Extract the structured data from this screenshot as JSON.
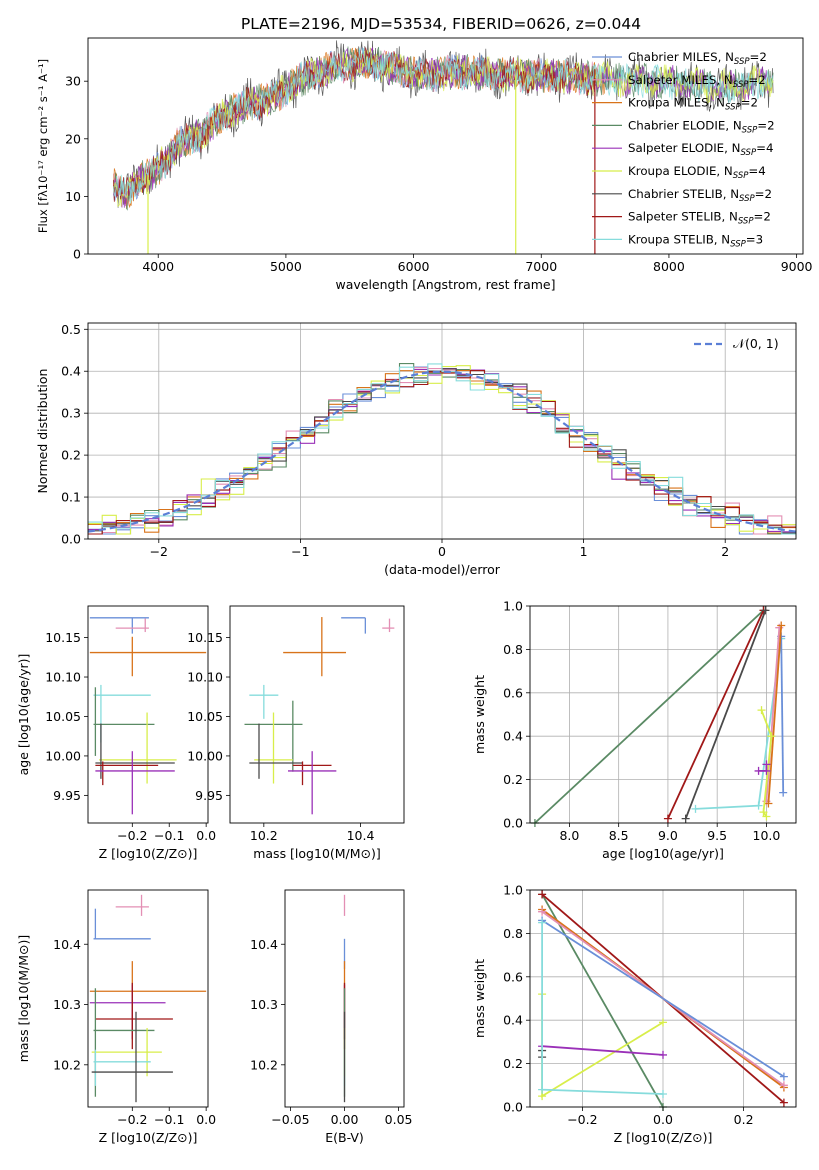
{
  "title": "PLATE=2196, MJD=53534, FIBERID=0626, z=0.044",
  "models": [
    {
      "label": "Chabrier MILES, N",
      "n": "=2",
      "color": "#6a8fd8"
    },
    {
      "label": "Salpeter MILES, N",
      "n": "=2",
      "color": "#e38fb4"
    },
    {
      "label": "Kroupa MILES, N",
      "n": "=2",
      "color": "#d8731a"
    },
    {
      "label": "Chabrier ELODIE, N",
      "n": "=2",
      "color": "#5a8a64"
    },
    {
      "label": "Salpeter ELODIE, N",
      "n": "=4",
      "color": "#9a30b8"
    },
    {
      "label": "Kroupa ELODIE, N",
      "n": "=4",
      "color": "#d8ee4a"
    },
    {
      "label": "Chabrier STELIB, N",
      "n": "=2",
      "color": "#4a4a4a"
    },
    {
      "label": "Salpeter STELIB, N",
      "n": "=2",
      "color": "#a01818"
    },
    {
      "label": "Kroupa STELIB, N",
      "n": "=3",
      "color": "#86dcdc"
    }
  ],
  "legend_sub": "SSP",
  "chart_data": [
    {
      "type": "line",
      "xlabel": "wavelength [Angstrom, rest frame]",
      "ylabel": "Flux [fλ10⁻¹⁷ erg cm⁻² s⁻¹ A⁻¹]",
      "xlim": [
        3450,
        9050
      ],
      "ylim": [
        0,
        37.5
      ],
      "xticks": [
        4000,
        5000,
        6000,
        7000,
        8000,
        9000
      ],
      "yticks": [
        0,
        10,
        20,
        30
      ],
      "continuum": [
        [
          3650,
          12
        ],
        [
          3750,
          10
        ],
        [
          3850,
          13
        ],
        [
          3950,
          14
        ],
        [
          4050,
          16
        ],
        [
          4150,
          19
        ],
        [
          4250,
          20
        ],
        [
          4350,
          21
        ],
        [
          4500,
          24
        ],
        [
          4700,
          26
        ],
        [
          4900,
          27
        ],
        [
          5100,
          30
        ],
        [
          5300,
          32
        ],
        [
          5500,
          33
        ],
        [
          5700,
          33
        ],
        [
          5900,
          32
        ],
        [
          6100,
          31
        ],
        [
          6300,
          31.5
        ],
        [
          6500,
          31.5
        ],
        [
          6700,
          31
        ],
        [
          6900,
          31
        ],
        [
          7100,
          31
        ],
        [
          7300,
          30.5
        ],
        [
          7500,
          30.5
        ],
        [
          7800,
          30
        ],
        [
          8000,
          30
        ],
        [
          8200,
          29.5
        ],
        [
          8500,
          29
        ],
        [
          8800,
          30
        ]
      ],
      "drops": [
        {
          "x": 3920,
          "model": 5
        },
        {
          "x": 6800,
          "model": 5
        },
        {
          "x": 7420,
          "model": 7
        }
      ],
      "legend_position": "upper right",
      "grid": false
    },
    {
      "type": "histogram",
      "xlabel": "(data-model)/error",
      "ylabel": "Normed distribution",
      "xlim": [
        -2.5,
        2.5
      ],
      "ylim": [
        0,
        0.515
      ],
      "xticks": [
        -2,
        -1,
        0,
        1,
        2
      ],
      "yticks": [
        0.0,
        0.1,
        0.2,
        0.3,
        0.4,
        0.5
      ],
      "bin_width": 0.1,
      "reference": {
        "label": "𝒩(0, 1)",
        "color": "#5b7fd6"
      },
      "grid": true
    },
    {
      "type": "scatter",
      "subtype": "errorbar",
      "xlabel": "Z [log10(Z/Z⊙)]",
      "ylabel": "age [log10(age/yr)]",
      "xlim": [
        -0.32,
        0.005
      ],
      "ylim": [
        9.915,
        10.19
      ],
      "xticks": [
        -0.2,
        -0.1,
        0.0
      ],
      "yticks": [
        9.95,
        10.0,
        10.05,
        10.1,
        10.15
      ],
      "points": [
        {
          "model": 0,
          "x": -0.2,
          "xerr": [
            0.115,
            0.045
          ],
          "y": 10.175,
          "yerr": [
            0.02,
            0.0
          ]
        },
        {
          "model": 1,
          "x": -0.165,
          "xerr": [
            0.08,
            0.01
          ],
          "y": 10.162,
          "yerr": [
            0.005,
            0.012
          ]
        },
        {
          "model": 2,
          "x": -0.2,
          "xerr": [
            0.115,
            0.2
          ],
          "y": 10.131,
          "yerr": [
            0.03,
            0.02
          ]
        },
        {
          "model": 8,
          "x": -0.285,
          "xerr": [
            0.02,
            0.135
          ],
          "y": 10.077,
          "yerr": [
            0.06,
            0.013
          ]
        },
        {
          "model": 3,
          "x": -0.3,
          "xerr": [
            0.005,
            0.16
          ],
          "y": 10.04,
          "yerr": [
            0.04,
            0.047
          ]
        },
        {
          "model": 5,
          "x": -0.16,
          "xerr": [
            0.13,
            0.08
          ],
          "y": 9.995,
          "yerr": [
            0.03,
            0.06
          ]
        },
        {
          "model": 6,
          "x": -0.285,
          "xerr": [
            0.015,
            0.2
          ],
          "y": 9.991,
          "yerr": [
            0.02,
            0.05
          ]
        },
        {
          "model": 7,
          "x": -0.28,
          "xerr": [
            0.02,
            0.15
          ],
          "y": 9.988,
          "yerr": [
            0.025,
            0.005
          ]
        },
        {
          "model": 4,
          "x": -0.2,
          "xerr": [
            0.1,
            0.115
          ],
          "y": 9.981,
          "yerr": [
            0.055,
            0.025
          ]
        }
      ]
    },
    {
      "type": "scatter",
      "subtype": "errorbar",
      "xlabel": "mass [log10(M/M⊙)]",
      "ylabel": "",
      "xlim": [
        10.13,
        10.49
      ],
      "ylim": [
        9.915,
        10.19
      ],
      "xticks": [
        10.2,
        10.4
      ],
      "yticks": [
        9.95,
        10.0,
        10.05,
        10.1,
        10.15
      ],
      "points": [
        {
          "model": 0,
          "x": 10.41,
          "xerr": [
            0.05,
            0.0
          ],
          "y": 10.175,
          "yerr": [
            0.02,
            0.0
          ]
        },
        {
          "model": 1,
          "x": 10.46,
          "xerr": [
            0.015,
            0.01
          ],
          "y": 10.162,
          "yerr": [
            0.005,
            0.012
          ]
        },
        {
          "model": 2,
          "x": 10.32,
          "xerr": [
            0.08,
            0.05
          ],
          "y": 10.131,
          "yerr": [
            0.03,
            0.045
          ]
        },
        {
          "model": 8,
          "x": 10.2,
          "xerr": [
            0.03,
            0.03
          ],
          "y": 10.077,
          "yerr": [
            0.03,
            0.013
          ]
        },
        {
          "model": 3,
          "x": 10.26,
          "xerr": [
            0.1,
            0.02
          ],
          "y": 10.04,
          "yerr": [
            0.06,
            0.03
          ]
        },
        {
          "model": 5,
          "x": 10.22,
          "xerr": [
            0.04,
            0.04
          ],
          "y": 9.995,
          "yerr": [
            0.03,
            0.06
          ]
        },
        {
          "model": 6,
          "x": 10.19,
          "xerr": [
            0.02,
            0.09
          ],
          "y": 9.991,
          "yerr": [
            0.02,
            0.05
          ]
        },
        {
          "model": 7,
          "x": 10.28,
          "xerr": [
            0.02,
            0.06
          ],
          "y": 9.988,
          "yerr": [
            0.025,
            0.005
          ]
        },
        {
          "model": 4,
          "x": 10.3,
          "xerr": [
            0.05,
            0.05
          ],
          "y": 9.981,
          "yerr": [
            0.055,
            0.025
          ]
        }
      ]
    },
    {
      "type": "line",
      "xlabel": "age [log10(age/yr)]",
      "ylabel": "mass weight",
      "xlim": [
        7.6,
        10.3
      ],
      "ylim": [
        0,
        1.0
      ],
      "xticks": [
        8.0,
        8.5,
        9.0,
        9.5,
        10.0
      ],
      "yticks": [
        0.0,
        0.2,
        0.4,
        0.6,
        0.8,
        1.0
      ],
      "grid": true,
      "series": [
        {
          "model": 3,
          "points": [
            [
              7.65,
              0.0
            ],
            [
              9.97,
              0.98
            ]
          ]
        },
        {
          "model": 7,
          "points": [
            [
              9.0,
              0.02
            ],
            [
              9.97,
              0.98
            ]
          ]
        },
        {
          "model": 6,
          "points": [
            [
              9.18,
              0.02
            ],
            [
              9.99,
              0.98
            ]
          ]
        },
        {
          "model": 8,
          "points": [
            [
              9.28,
              0.065
            ],
            [
              9.92,
              0.08
            ],
            [
              10.15,
              0.85
            ]
          ]
        },
        {
          "model": 0,
          "points": [
            [
              10.15,
              0.86
            ],
            [
              10.17,
              0.14
            ]
          ]
        },
        {
          "model": 1,
          "points": [
            [
              10.13,
              0.9
            ],
            [
              10.0,
              0.1
            ]
          ]
        },
        {
          "model": 2,
          "points": [
            [
              10.15,
              0.91
            ],
            [
              10.02,
              0.09
            ]
          ]
        },
        {
          "model": 5,
          "points": [
            [
              9.95,
              0.52
            ],
            [
              10.05,
              0.4
            ],
            [
              9.97,
              0.05
            ],
            [
              10.0,
              0.03
            ]
          ]
        },
        {
          "model": 4,
          "points": [
            [
              9.92,
              0.24
            ],
            [
              10.0,
              0.24
            ],
            [
              10.0,
              0.27
            ]
          ]
        }
      ]
    },
    {
      "type": "scatter",
      "subtype": "errorbar",
      "xlabel": "Z [log10(Z/Z⊙)]",
      "ylabel": "mass [log10(M/M⊙)]",
      "xlim": [
        -0.32,
        0.005
      ],
      "ylim": [
        10.13,
        10.49
      ],
      "xticks": [
        -0.2,
        -0.1,
        0.0
      ],
      "yticks": [
        10.2,
        10.3,
        10.4
      ],
      "points": [
        {
          "model": 1,
          "x": -0.175,
          "xerr": [
            0.07,
            0.02
          ],
          "y": 10.462,
          "yerr": [
            0.015,
            0.02
          ]
        },
        {
          "model": 0,
          "x": -0.3,
          "xerr": [
            0.005,
            0.15
          ],
          "y": 10.409,
          "yerr": [
            0.0,
            0.05
          ]
        },
        {
          "model": 2,
          "x": -0.2,
          "xerr": [
            0.115,
            0.2
          ],
          "y": 10.322,
          "yerr": [
            0.08,
            0.05
          ]
        },
        {
          "model": 4,
          "x": -0.2,
          "xerr": [
            0.115,
            0.09
          ],
          "y": 10.303,
          "yerr": [
            0.06,
            0.03
          ]
        },
        {
          "model": 7,
          "x": -0.2,
          "xerr": [
            0.1,
            0.11
          ],
          "y": 10.276,
          "yerr": [
            0.05,
            0.06
          ]
        },
        {
          "model": 3,
          "x": -0.3,
          "xerr": [
            0.005,
            0.16
          ],
          "y": 10.257,
          "yerr": [
            0.11,
            0.07
          ]
        },
        {
          "model": 5,
          "x": -0.16,
          "xerr": [
            0.15,
            0.04
          ],
          "y": 10.221,
          "yerr": [
            0.04,
            0.04
          ]
        },
        {
          "model": 8,
          "x": -0.3,
          "xerr": [
            0.005,
            0.15
          ],
          "y": 10.205,
          "yerr": [
            0.04,
            0.02
          ]
        },
        {
          "model": 6,
          "x": -0.19,
          "xerr": [
            0.12,
            0.1
          ],
          "y": 10.188,
          "yerr": [
            0.05,
            0.1
          ]
        }
      ]
    },
    {
      "type": "scatter",
      "subtype": "errorbar",
      "xlabel": "E(B-V)",
      "ylabel": "",
      "xlim": [
        -0.055,
        0.055
      ],
      "ylim": [
        10.13,
        10.49
      ],
      "xticks": [
        -0.05,
        0.0,
        0.05
      ],
      "yticks": [
        10.2,
        10.3,
        10.4
      ],
      "points": [
        {
          "model": 1,
          "x": 0.0,
          "y": 10.462,
          "yerr": [
            0.015,
            0.02
          ]
        },
        {
          "model": 0,
          "x": 0.0,
          "y": 10.409,
          "yerr": [
            0.05,
            0.0
          ]
        },
        {
          "model": 2,
          "x": 0.0,
          "y": 10.322,
          "yerr": [
            0.08,
            0.05
          ]
        },
        {
          "model": 4,
          "x": 0.0,
          "y": 10.303,
          "yerr": [
            0.06,
            0.03
          ]
        },
        {
          "model": 7,
          "x": 0.0,
          "y": 10.276,
          "yerr": [
            0.05,
            0.06
          ]
        },
        {
          "model": 3,
          "x": 0.0,
          "y": 10.257,
          "yerr": [
            0.11,
            0.07
          ]
        },
        {
          "model": 5,
          "x": 0.0,
          "y": 10.221,
          "yerr": [
            0.04,
            0.04
          ]
        },
        {
          "model": 8,
          "x": 0.0,
          "y": 10.205,
          "yerr": [
            0.04,
            0.02
          ]
        },
        {
          "model": 6,
          "x": 0.0,
          "y": 10.188,
          "yerr": [
            0.05,
            0.1
          ]
        }
      ]
    },
    {
      "type": "line",
      "xlabel": "Z [log10(Z/Z⊙)]",
      "ylabel": "mass weight",
      "xlim": [
        -0.33,
        0.33
      ],
      "ylim": [
        0,
        1.0
      ],
      "xticks": [
        -0.2,
        0.0,
        0.2
      ],
      "yticks": [
        0.0,
        0.2,
        0.4,
        0.6,
        0.8,
        1.0
      ],
      "grid": true,
      "series": [
        {
          "model": 3,
          "points": [
            [
              -0.3,
              0.98
            ],
            [
              0.0,
              0.0
            ]
          ]
        },
        {
          "model": 7,
          "points": [
            [
              -0.3,
              0.98
            ],
            [
              0.3,
              0.02
            ]
          ]
        },
        {
          "model": 2,
          "points": [
            [
              -0.3,
              0.91
            ],
            [
              0.3,
              0.09
            ]
          ]
        },
        {
          "model": 1,
          "points": [
            [
              -0.3,
              0.9
            ],
            [
              0.3,
              0.1
            ]
          ]
        },
        {
          "model": 0,
          "points": [
            [
              -0.3,
              0.86
            ],
            [
              0.3,
              0.14
            ]
          ]
        },
        {
          "model": 5,
          "points": [
            [
              -0.3,
              0.52
            ],
            [
              -0.3,
              0.05
            ],
            [
              0.0,
              0.39
            ]
          ]
        },
        {
          "model": 4,
          "points": [
            [
              -0.3,
              0.28
            ],
            [
              0.0,
              0.24
            ]
          ]
        },
        {
          "model": 6,
          "points": [
            [
              -0.3,
              0.26
            ],
            [
              -0.3,
              0.23
            ]
          ]
        },
        {
          "model": 8,
          "points": [
            [
              -0.3,
              0.85
            ],
            [
              -0.3,
              0.08
            ],
            [
              0.0,
              0.06
            ]
          ]
        }
      ]
    }
  ]
}
